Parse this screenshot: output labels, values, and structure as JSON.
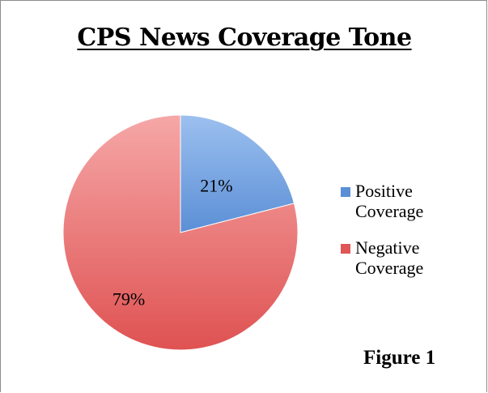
{
  "chart_data": {
    "type": "pie",
    "title": "CPS News Coverage Tone",
    "categories": [
      "Positive Coverage",
      "Negative Coverage"
    ],
    "values": [
      21,
      79
    ],
    "value_labels": [
      "21%",
      "79%"
    ],
    "colors": [
      "#5b8fd6",
      "#e05656"
    ],
    "legend_position": "right"
  },
  "legend": {
    "items": [
      {
        "label": "Positive Coverage",
        "color": "#5b8fd6"
      },
      {
        "label": "Negative Coverage",
        "color": "#e05656"
      }
    ]
  },
  "figure_label": "Figure 1"
}
